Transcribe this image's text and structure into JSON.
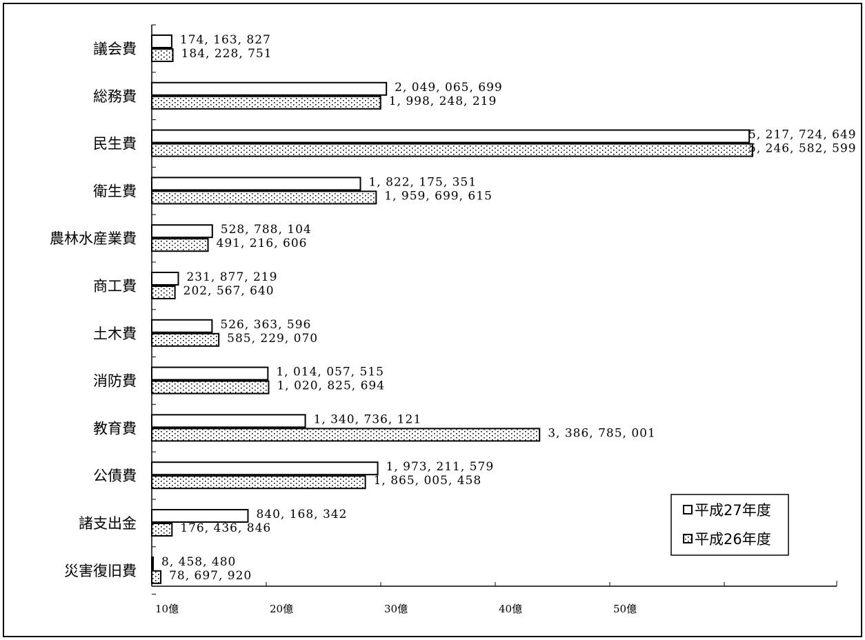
{
  "chart_data": {
    "type": "bar",
    "orientation": "horizontal",
    "categories": [
      "議会費",
      "総務費",
      "民生費",
      "衛生費",
      "農林水産業費",
      "商工費",
      "土木費",
      "消防費",
      "教育費",
      "公債費",
      "諸支出金",
      "災害復旧費"
    ],
    "series": [
      {
        "name": "平成27年度",
        "pattern": "blank",
        "values": [
          174163827,
          2049065699,
          5217724649,
          1822175351,
          528788104,
          231877219,
          526363596,
          1014057515,
          1340736121,
          1973211579,
          840168342,
          8458480
        ],
        "labels": [
          "174, 163, 827",
          "2, 049, 065, 699",
          "5, 217, 724, 649",
          "1, 822, 175, 351",
          "528, 788, 104",
          "231, 877, 219",
          "526, 363, 596",
          "1, 014, 057, 515",
          "1, 340, 736, 121",
          "1, 973, 211, 579",
          "840, 168, 342",
          "8, 458, 480"
        ]
      },
      {
        "name": "平成26年度",
        "pattern": "dotted",
        "values": [
          184228751,
          1998248219,
          5246582599,
          1959699615,
          491216606,
          202567640,
          585229070,
          1020825694,
          3386785001,
          1865005458,
          176436846,
          78697920
        ],
        "labels": [
          "184, 228, 751",
          "1, 998, 248, 219",
          "5, 246, 582, 599",
          "1, 959, 699, 615",
          "491, 216, 606",
          "202, 567, 640",
          "585, 229, 070",
          "1, 020, 825, 694",
          "3, 386, 785, 001",
          "1, 865, 005, 458",
          "176, 436, 846",
          "78, 697, 920"
        ]
      }
    ],
    "x_ticks": [
      {
        "value": 1000000000,
        "label": "10億"
      },
      {
        "value": 2000000000,
        "label": "20億"
      },
      {
        "value": 3000000000,
        "label": "30億"
      },
      {
        "value": 4000000000,
        "label": "40億"
      },
      {
        "value": 5000000000,
        "label": "50億"
      }
    ],
    "xlim": [
      0,
      6000000000
    ],
    "legend": {
      "placement": "bottom-right",
      "entries": [
        "平成27年度",
        "平成26年度"
      ]
    },
    "grid": false,
    "colors": {
      "bar_fill": "#ffffff",
      "bar_stroke": "#000000",
      "dot": "#000000"
    }
  }
}
